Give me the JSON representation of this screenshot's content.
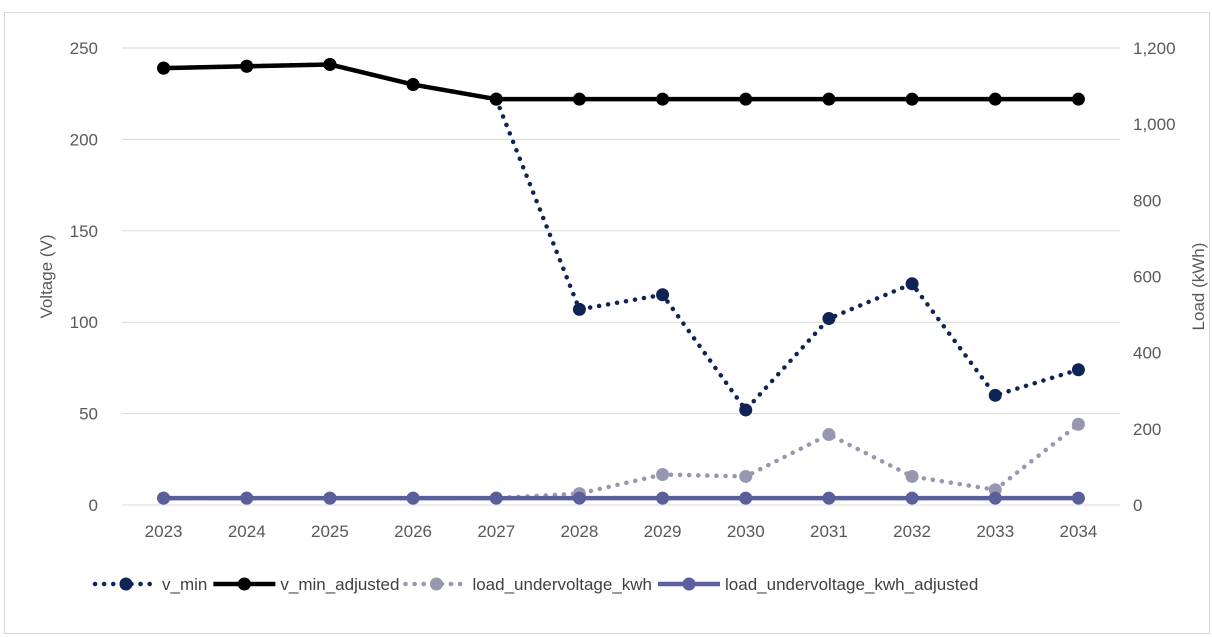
{
  "chart_data": {
    "type": "line",
    "categories": [
      "2023",
      "2024",
      "2025",
      "2026",
      "2027",
      "2028",
      "2029",
      "2030",
      "2031",
      "2032",
      "2033",
      "2034"
    ],
    "y_left": {
      "label": "Voltage (V)",
      "ticks": [
        "0",
        "50",
        "100",
        "150",
        "200",
        "250"
      ],
      "ylim": [
        0,
        250
      ]
    },
    "y_right": {
      "label": "Load (kWh)",
      "ticks": [
        "0",
        "200",
        "400",
        "600",
        "800",
        "1,000",
        "1,200"
      ],
      "ylim": [
        0,
        1200
      ]
    },
    "grid": true,
    "legend_position": "bottom",
    "series": [
      {
        "name": "v_min",
        "axis": "left",
        "style": "dotted",
        "color": "#0f2356",
        "values": [
          239,
          240,
          241,
          230,
          222,
          107,
          115,
          52,
          102,
          121,
          60,
          74
        ]
      },
      {
        "name": "v_min_adjusted",
        "axis": "left",
        "style": "solid",
        "color": "#000000",
        "values": [
          239,
          240,
          241,
          230,
          222,
          222,
          222,
          222,
          222,
          222,
          222,
          222
        ]
      },
      {
        "name": "load_undervoltage_kwh",
        "axis": "right",
        "style": "dotted",
        "color": "#9797b0",
        "values": [
          18,
          18,
          18,
          18,
          18,
          30,
          80,
          75,
          185,
          75,
          40,
          212
        ]
      },
      {
        "name": "load_undervoltage_kwh_adjusted",
        "axis": "right",
        "style": "solid",
        "color": "#5a5e9a",
        "values": [
          18,
          18,
          18,
          18,
          18,
          18,
          18,
          18,
          18,
          18,
          18,
          18
        ]
      }
    ]
  }
}
